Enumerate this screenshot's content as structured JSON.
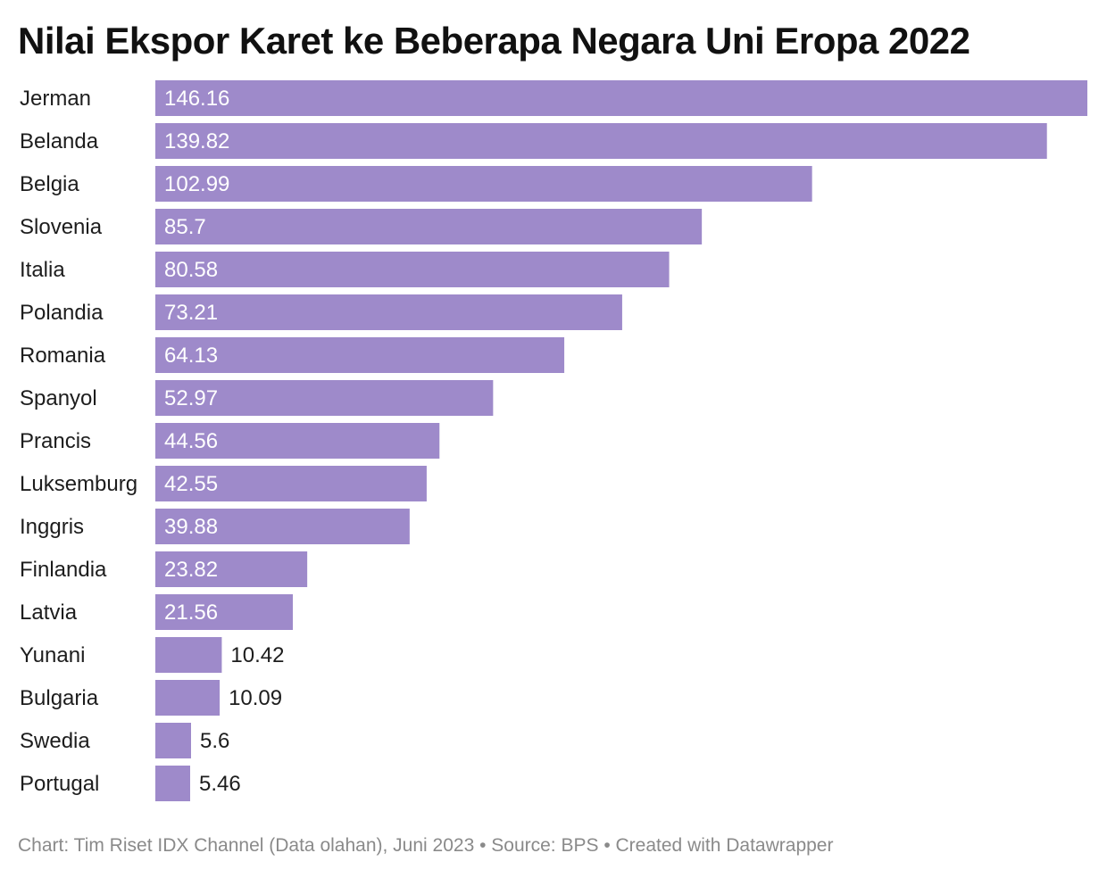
{
  "chart_data": {
    "type": "bar",
    "orientation": "horizontal",
    "title": "Nilai Ekspor Karet ke Beberapa Negara Uni Eropa 2022",
    "categories": [
      "Jerman",
      "Belanda",
      "Belgia",
      "Slovenia",
      "Italia",
      "Polandia",
      "Romania",
      "Spanyol",
      "Prancis",
      "Luksemburg",
      "Inggris",
      "Finlandia",
      "Latvia",
      "Yunani",
      "Bulgaria",
      "Swedia",
      "Portugal"
    ],
    "values": [
      146.16,
      139.82,
      102.99,
      85.7,
      80.58,
      73.21,
      64.13,
      52.97,
      44.56,
      42.55,
      39.88,
      23.82,
      21.56,
      10.42,
      10.09,
      5.6,
      5.46
    ],
    "value_labels": [
      "146.16",
      "139.82",
      "102.99",
      "85.7",
      "80.58",
      "73.21",
      "64.13",
      "52.97",
      "44.56",
      "42.55",
      "39.88",
      "23.82",
      "21.56",
      "10.42",
      "10.09",
      "5.6",
      "5.46"
    ],
    "xlabel": "",
    "ylabel": "",
    "xlim": [
      0,
      146.16
    ],
    "grid": false,
    "legend": "none",
    "bar_color": "#9e8aca",
    "label_inside_color": "#ffffff",
    "label_outside_color": "#1d1d1d"
  },
  "footer": {
    "text": "Chart: Tim Riset IDX Channel (Data olahan), Juni 2023 • Source: BPS • Created with Datawrapper"
  }
}
